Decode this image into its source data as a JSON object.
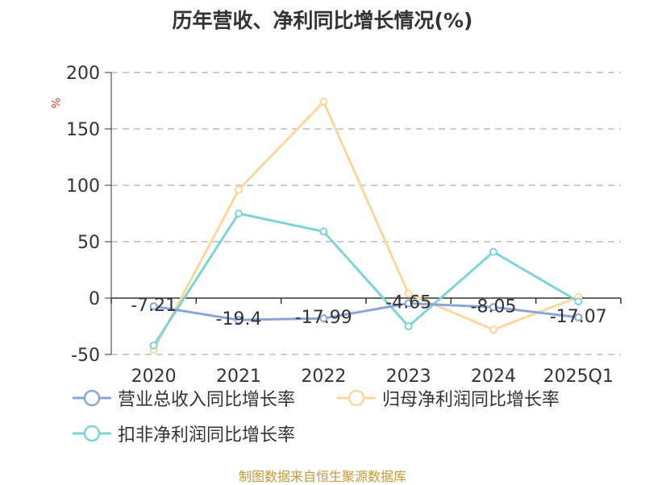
{
  "title": "历年营收、净利同比增长情况(%)",
  "unit_label": "%",
  "source": "制图数据来自恒生聚源数据库",
  "colors": {
    "revenue": "#8aa6d6",
    "parent_profit": "#f8d89b",
    "deducted_profit": "#7ed3d6",
    "grid": "#bbbbbb",
    "axis": "#333333",
    "text": "#333333"
  },
  "chart_data": {
    "type": "line",
    "categories": [
      "2020",
      "2021",
      "2022",
      "2023",
      "2024",
      "2025Q1"
    ],
    "ylim": [
      -50,
      200
    ],
    "yticks": [
      200,
      150,
      100,
      50,
      0,
      -50
    ],
    "grid": true,
    "legend_position": "bottom",
    "series": [
      {
        "name": "营业总收入同比增长率",
        "values": [
          -7.21,
          -19.4,
          -17.99,
          -4.65,
          -8.05,
          -17.07
        ],
        "labels": [
          "-7.21",
          "-19.4",
          "-17.99",
          "-4.65",
          "-8.05",
          "-17.07"
        ]
      },
      {
        "name": "归母净利润同比增长率",
        "values": [
          -46,
          96,
          174,
          4,
          -28,
          1
        ]
      },
      {
        "name": "扣非净利润同比增长率",
        "values": [
          -42,
          75,
          59,
          -25,
          41,
          -3
        ]
      }
    ]
  }
}
